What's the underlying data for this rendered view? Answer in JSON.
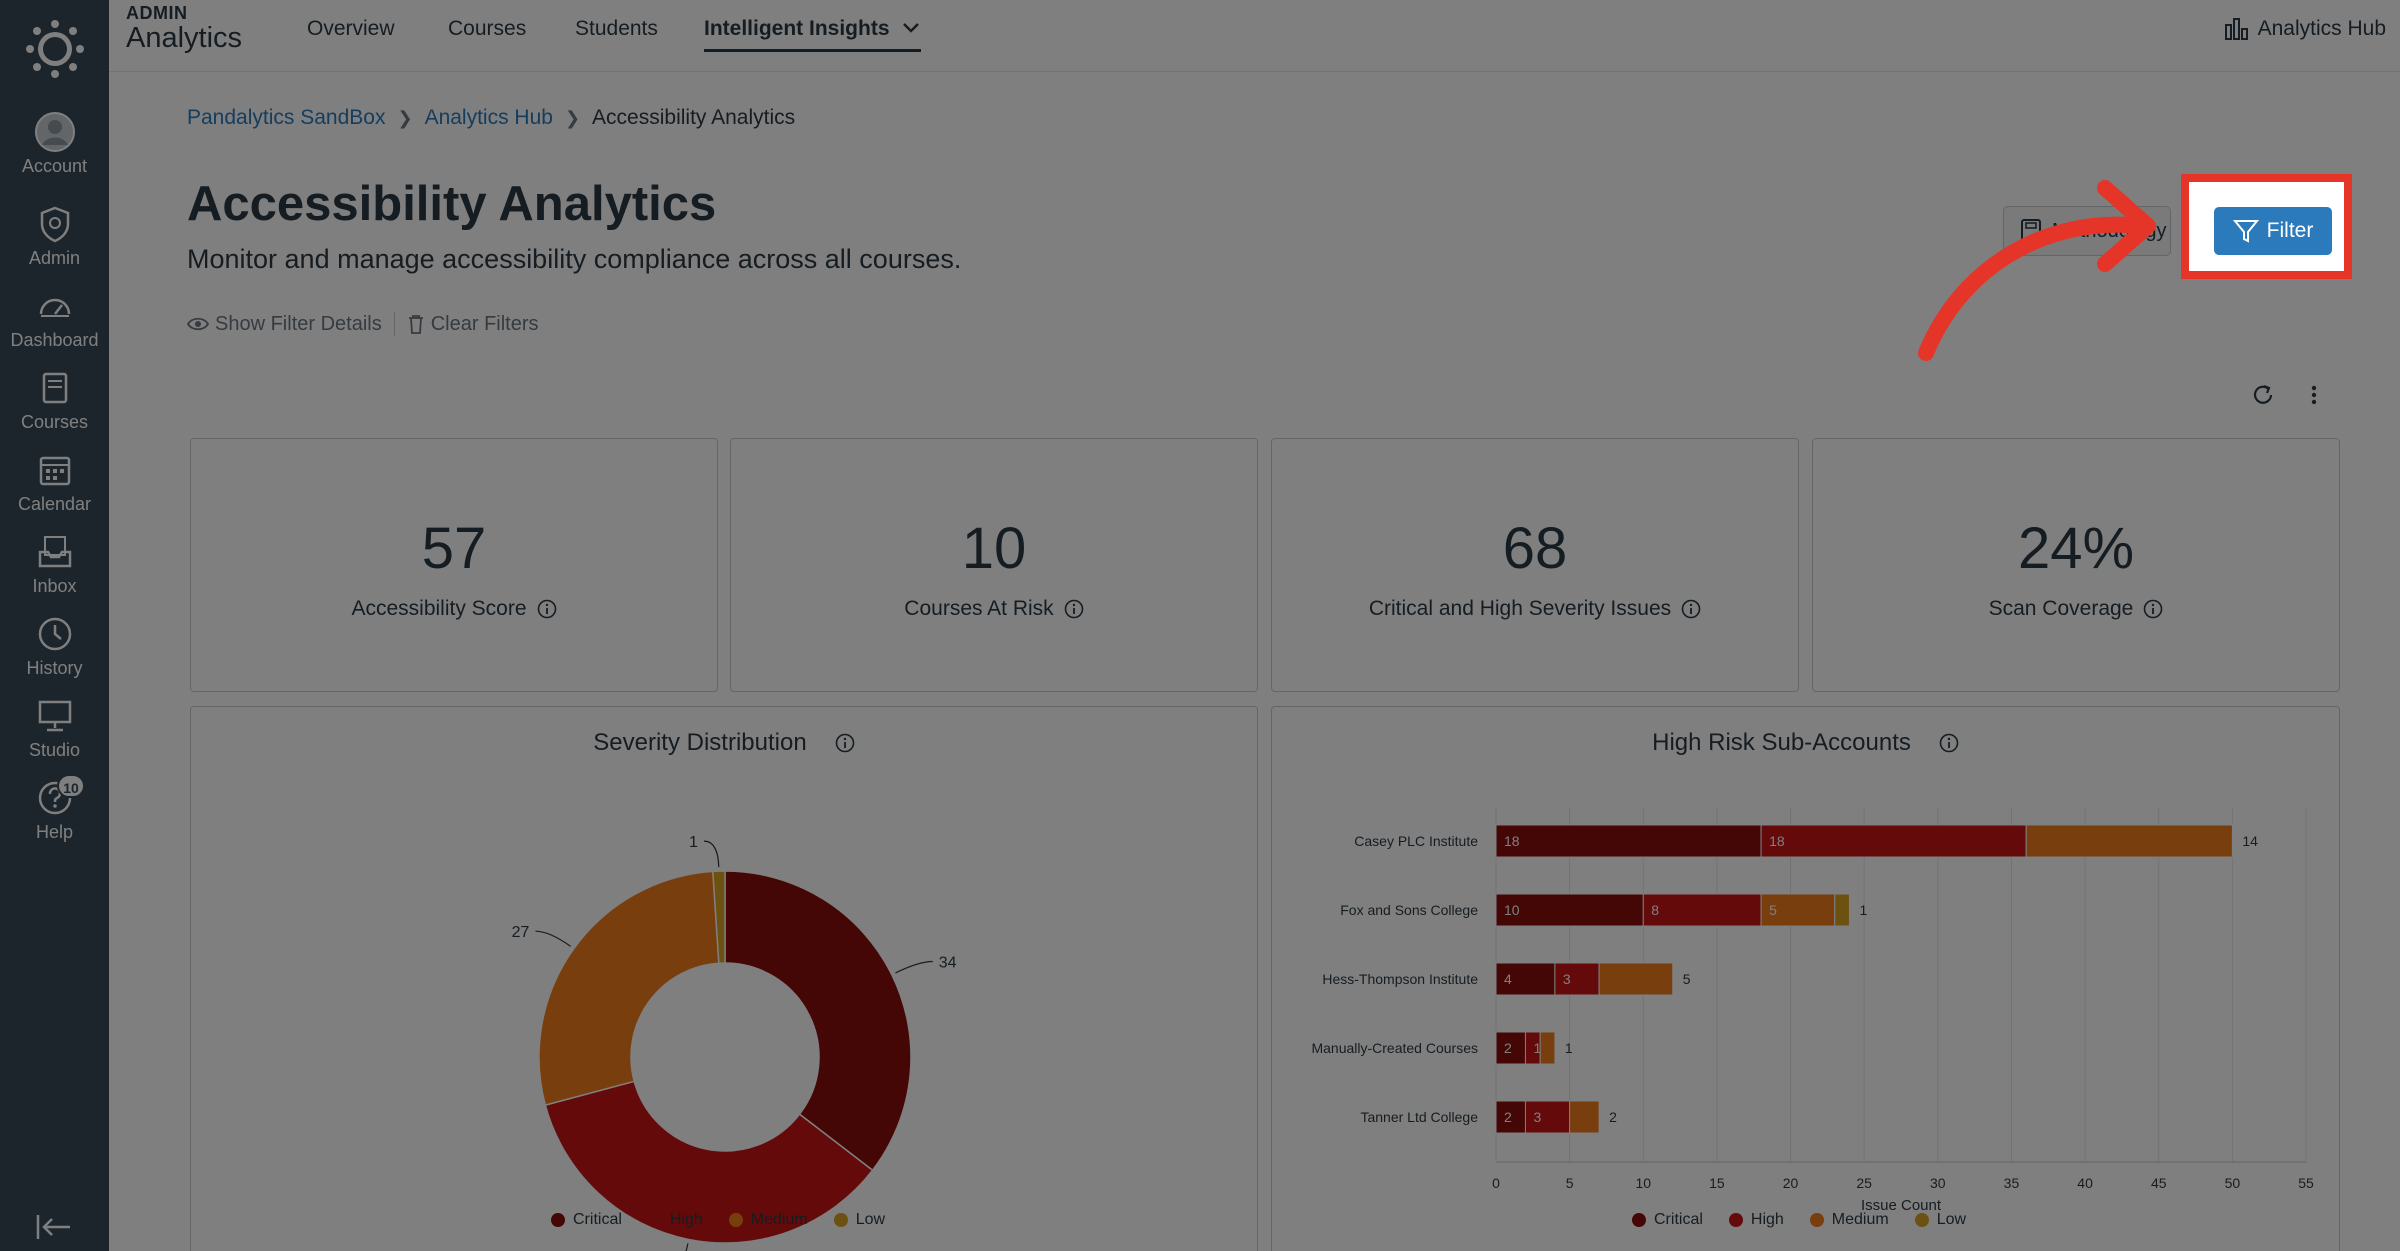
{
  "sidebar": {
    "items": [
      {
        "label": "Account",
        "icon": "account-icon"
      },
      {
        "label": "Admin",
        "icon": "admin-shield-icon"
      },
      {
        "label": "Dashboard",
        "icon": "dashboard-gauge-icon"
      },
      {
        "label": "Courses",
        "icon": "courses-book-icon"
      },
      {
        "label": "Calendar",
        "icon": "calendar-icon"
      },
      {
        "label": "Inbox",
        "icon": "inbox-icon"
      },
      {
        "label": "History",
        "icon": "history-clock-icon"
      },
      {
        "label": "Studio",
        "icon": "studio-icon"
      },
      {
        "label": "Help",
        "icon": "help-icon",
        "badge": "10"
      }
    ]
  },
  "topbar": {
    "brand_small": "ADMIN",
    "brand_big": "Analytics",
    "tabs": [
      {
        "label": "Overview"
      },
      {
        "label": "Courses"
      },
      {
        "label": "Students"
      },
      {
        "label": "Intelligent Insights"
      }
    ],
    "hub_link": "Analytics Hub"
  },
  "breadcrumb": [
    "Pandalytics SandBox",
    "Analytics Hub",
    "Accessibility Analytics"
  ],
  "page": {
    "title": "Accessibility Analytics",
    "subtitle": "Monitor and manage accessibility compliance across all courses.",
    "show_filter_details": "Show Filter Details",
    "clear_filters": "Clear Filters",
    "methodology_label": "Methodology",
    "filter_label": "Filter"
  },
  "kpis": [
    {
      "value": "57",
      "label": "Accessibility Score"
    },
    {
      "value": "10",
      "label": "Courses At Risk"
    },
    {
      "value": "68",
      "label": "Critical and High Severity Issues"
    },
    {
      "value": "24%",
      "label": "Scan Coverage"
    }
  ],
  "colors": {
    "critical": "#8a0c0c",
    "high": "#c81414",
    "medium": "#f07c1a",
    "low": "#d8a223",
    "annotation": "#e53529",
    "primary": "#2b7abc"
  },
  "chart_data": [
    {
      "type": "pie",
      "title": "Severity Distribution",
      "categories": [
        "Critical",
        "High",
        "Medium",
        "Low"
      ],
      "values": [
        34,
        34,
        27,
        1
      ],
      "legend": "bottom"
    },
    {
      "type": "bar",
      "orientation": "horizontal",
      "stacked": true,
      "title": "High Risk Sub-Accounts",
      "xlabel": "Issue Count",
      "categories": [
        "Casey PLC Institute",
        "Fox and Sons College",
        "Hess-Thompson Institute",
        "Manually-Created Courses",
        "Tanner Ltd College"
      ],
      "series": [
        {
          "name": "Critical",
          "values": [
            18,
            10,
            4,
            2,
            2
          ]
        },
        {
          "name": "High",
          "values": [
            18,
            8,
            3,
            1,
            3
          ]
        },
        {
          "name": "Medium",
          "values": [
            14,
            5,
            5,
            1,
            2
          ]
        },
        {
          "name": "Low",
          "values": [
            0,
            1,
            0,
            0,
            0
          ]
        }
      ],
      "segment_labels": [
        [
          "18",
          "18",
          "14",
          ""
        ],
        [
          "10",
          "8",
          "5",
          "1"
        ],
        [
          "4",
          "3",
          "5",
          ""
        ],
        [
          "2",
          "1",
          "1",
          ""
        ],
        [
          "2",
          "3",
          "2",
          ""
        ]
      ],
      "xlim": [
        0,
        55
      ],
      "xticks": [
        "0",
        "5",
        "10",
        "15",
        "20",
        "25",
        "30",
        "35",
        "40",
        "45",
        "50",
        "55"
      ],
      "grid": true,
      "legend": "bottom"
    }
  ]
}
